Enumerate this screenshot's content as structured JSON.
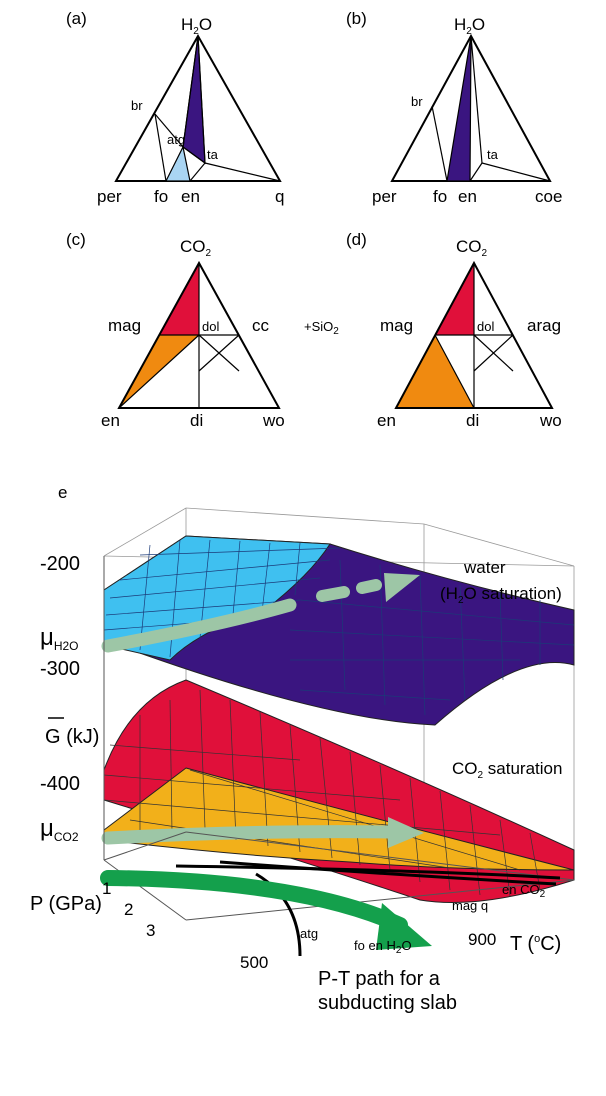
{
  "panels": {
    "a": {
      "tag": "(a)",
      "apex": "H",
      "apex_sub": "2",
      "apex_tail": "O",
      "per": "per",
      "fo": "fo",
      "en": "en",
      "q": "q",
      "br": "br",
      "atg": "atg",
      "ta": "ta"
    },
    "b": {
      "tag": "(b)",
      "apex": "H",
      "apex_sub": "2",
      "apex_tail": "O",
      "per": "per",
      "fo": "fo",
      "en": "en",
      "coe": "coe",
      "br": "br",
      "ta": "ta"
    },
    "c": {
      "tag": "(c)",
      "apex": "CO",
      "apex_sub": "2",
      "mag": "mag",
      "dol": "dol",
      "cc": "cc",
      "en": "en",
      "di": "di",
      "wo": "wo"
    },
    "d": {
      "tag": "(d)",
      "apex": "CO",
      "apex_sub": "2",
      "mag": "mag",
      "dol": "dol",
      "arag": "arag",
      "en": "en",
      "di": "di",
      "wo": "wo"
    },
    "middle": {
      "plus": "+SiO",
      "plus_sub": "2"
    }
  },
  "surface": {
    "tag": "e",
    "y_ticks": [
      "-200",
      "-300",
      "-400"
    ],
    "y_label": "G (kJ)",
    "mu1": "μ",
    "mu1_sub": "H2O",
    "mu2": "μ",
    "mu2_sub": "CO2",
    "water_label_1": "water",
    "water_label_2_pre": "(H",
    "water_label_2_sub": "2",
    "water_label_2_post": "O saturation)",
    "co2_label_pre": "CO",
    "co2_label_sub": "2",
    "co2_label_post": " saturation",
    "p_label": "P (GPa)",
    "p_ticks": [
      "1",
      "2",
      "3"
    ],
    "t_label_pre": "T (",
    "t_label_sup": "o",
    "t_label_post": "C)",
    "t_ticks": [
      "500",
      "900"
    ],
    "curve_labels": {
      "atg": "atg",
      "fo_en_h2o_pre": "fo en H",
      "fo_en_h2o_sub": "2",
      "fo_en_h2o_post": "O",
      "en_co2_pre": "en CO",
      "en_co2_sub": "2",
      "mag_q": "mag q"
    },
    "path_caption_1": "P-T path for a",
    "path_caption_2": "subducting slab"
  },
  "colors": {
    "violet": "#3a1580",
    "light_blue": "#a9d5f3",
    "cyan": "#3fc0f0",
    "red": "#e0103a",
    "orange": "#f08a10",
    "yellow_orange": "#f2b01a",
    "arrow_green": "#1a9a5a",
    "pale_arrow": "#9dc6a6"
  }
}
